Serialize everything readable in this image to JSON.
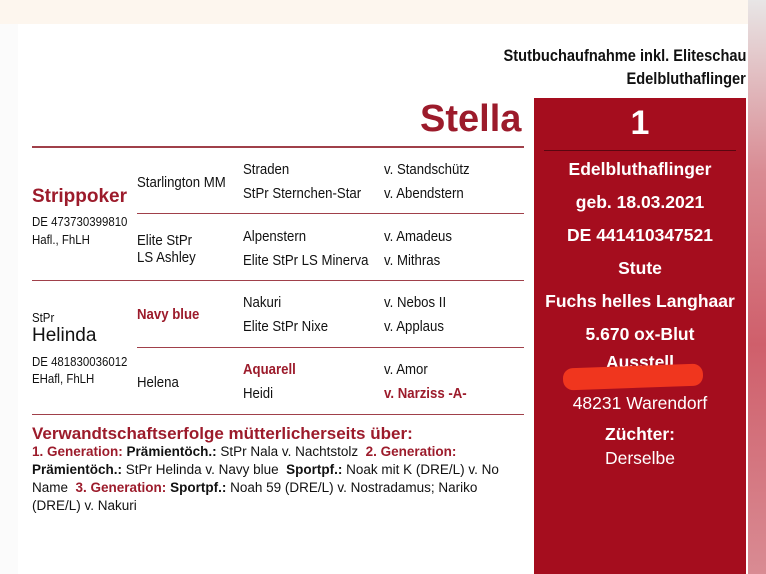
{
  "header": {
    "line1": "Stutbuchaufnahme inkl. Eliteschau",
    "line2": "Edelbluthaflinger"
  },
  "horse_name": "Stella",
  "panel": {
    "number": "1",
    "breed": "Edelbluthaflinger",
    "birth": "geb. 18.03.2021",
    "ueln": "DE 441410347521",
    "sex": "Stute",
    "color": "Fuchs helles Langhaar",
    "blood": "5.670 ox-Blut",
    "exhibitor_label": "Ausstell",
    "exhibitor_city": "48231 Warendorf",
    "breeder_label": "Züchter:",
    "breeder": "Derselbe",
    "accent": "#a50d1e"
  },
  "sire": {
    "name": "Strippoker",
    "id": "DE 473730399810",
    "breed": "Hafl., FhLH",
    "sire": "Starlington MM",
    "dam": "Elite StPr LS Ashley",
    "ss": "Straden",
    "ss_of": "v. Standschütz",
    "sd": "StPr Sternchen-Star",
    "sd_of": "v. Abendstern",
    "ds": "Alpenstern",
    "ds_of": "v. Amadeus",
    "dd": "Elite StPr LS Minerva",
    "dd_of": "v. Mithras"
  },
  "dam": {
    "prefix": "StPr",
    "name": "Helinda",
    "id": "DE 481830036012",
    "breed": "EHafl, FhLH",
    "sire": "Navy blue",
    "dam": "Helena",
    "ss": "Nakuri",
    "ss_of": "v. Nebos II",
    "sd": "Elite StPr Nixe",
    "sd_of": "v. Applaus",
    "ds": "Aquarell",
    "ds_of": "v. Amor",
    "dd": "Heidi",
    "dd_of": "v. Narziss -A-"
  },
  "footer": {
    "heading": "Verwandtschaftserfolge mütterlicherseits über:",
    "g1": "1. Generation:",
    "g1_label": "Prämientöch.:",
    "g1_text": "StPr Nala v. Nachtstolz",
    "g2": "2. Generation:",
    "g2_label": "Prämientöch.:",
    "g2_text": "StPr Helinda v. Navy blue",
    "g2_label2": "Sportpf.:",
    "g2_text2": "Noak mit K (DRE/L) v. No Name",
    "g3": "3. Generation:",
    "g3_label": "Sportpf.:",
    "g3_text": "Noah 59 (DRE/L) v. Nostradamus; Nariko (DRE/L) v. Nakuri"
  }
}
